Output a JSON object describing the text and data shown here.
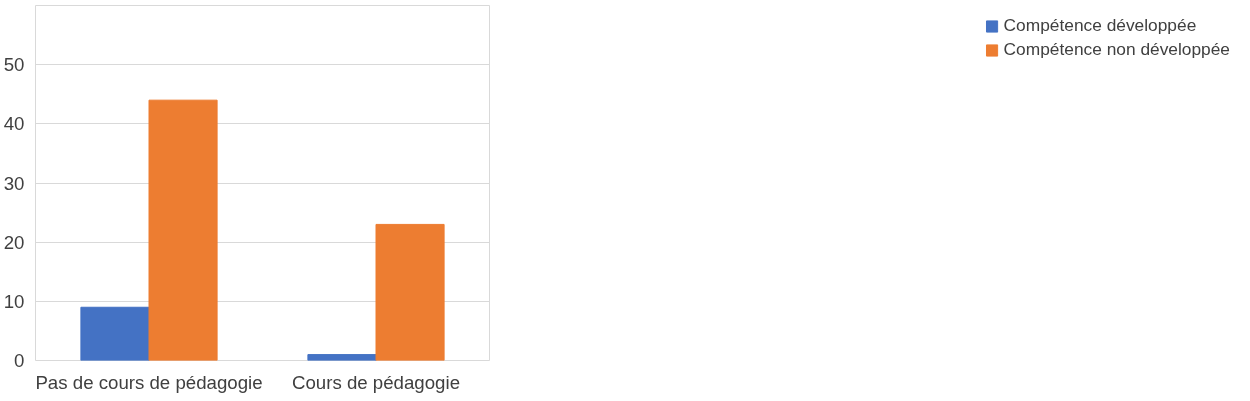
{
  "chart_data": {
    "type": "bar",
    "categories": [
      "Pas de cours de pédagogie",
      "Cours de pédagogie"
    ],
    "series": [
      {
        "name": "Compétence développée",
        "color": "#4472c4",
        "values": [
          9,
          1
        ]
      },
      {
        "name": "Compétence non développée",
        "color": "#ed7d31",
        "values": [
          44,
          23
        ]
      }
    ],
    "ylim": [
      0,
      60
    ],
    "yticks": [
      0,
      10,
      20,
      30,
      40,
      50,
      {
        "value": 60,
        "label": null
      }
    ],
    "grid": "y",
    "legend": "right"
  }
}
